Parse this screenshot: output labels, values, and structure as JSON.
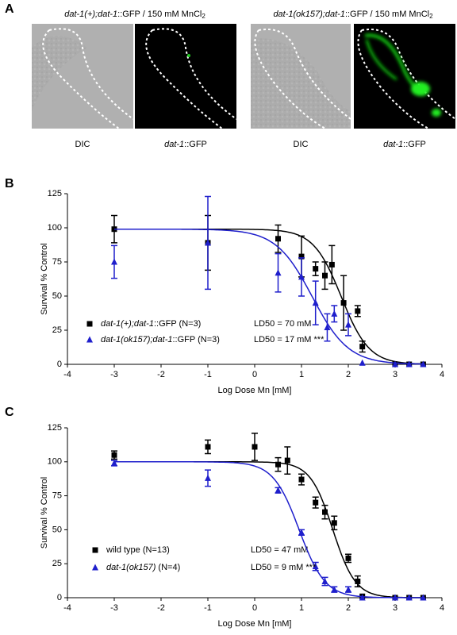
{
  "panel_a": {
    "label": "A",
    "groups": [
      {
        "heading": "dat-1(+);dat-1::GFP / 150 mM MnCl2",
        "captions": [
          "DIC",
          "dat-1::GFP"
        ]
      },
      {
        "heading": "dat-1(ok157);dat-1::GFP / 150 mM MnCl2",
        "captions": [
          "DIC",
          "dat-1::GFP"
        ]
      }
    ]
  },
  "chart_data": [
    {
      "type": "scatter",
      "panel": "B",
      "xlabel": "Log Dose Mn [mM]",
      "ylabel": "Survival % Control",
      "xlim": [
        -4,
        4
      ],
      "ylim": [
        0,
        125
      ],
      "xticks": [
        -4,
        -3,
        -2,
        -1,
        0,
        1,
        2,
        3,
        4
      ],
      "yticks": [
        0,
        25,
        50,
        75,
        100,
        125
      ],
      "series": [
        {
          "name": "dat-1(+);dat-1::GFP (N=3)",
          "ld50_label": "LD50 = 70 mM",
          "color": "#000000",
          "marker": "square",
          "x": [
            -3,
            -1,
            0.5,
            1,
            1.3,
            1.5,
            1.65,
            1.9,
            2.2,
            2.3,
            3,
            3.3,
            3.6
          ],
          "values": [
            99,
            89,
            92,
            79,
            70,
            65,
            73,
            45,
            39,
            13,
            0,
            0,
            0
          ],
          "errors": [
            10,
            20,
            10,
            15,
            5,
            10,
            14,
            20,
            4,
            4,
            null,
            null,
            null
          ],
          "fit": {
            "top": 99,
            "bottom": 0,
            "log_ld50": 1.85,
            "hill": 1.46
          }
        },
        {
          "name": "dat-1(ok157);dat-1::GFP (N=3)",
          "ld50_label": "LD50 = 17 mM ***",
          "color": "#1f1fcc",
          "marker": "triangle",
          "x": [
            -3,
            -1,
            0.5,
            1,
            1.3,
            1.55,
            1.7,
            2,
            2.3,
            3,
            3.3,
            3.6
          ],
          "values": [
            75,
            89,
            67,
            64,
            45,
            27,
            37,
            29,
            1,
            0,
            0,
            0
          ],
          "errors": [
            12,
            34,
            14,
            14,
            16,
            10,
            6,
            8,
            null,
            null,
            null,
            null
          ],
          "fit": {
            "top": 99,
            "bottom": 0,
            "log_ld50": 1.23,
            "hill": 1.12
          }
        }
      ]
    },
    {
      "type": "scatter",
      "panel": "C",
      "xlabel": "Log Dose Mn [mM]",
      "ylabel": "Survival % Control",
      "xlim": [
        -4,
        4
      ],
      "ylim": [
        0,
        125
      ],
      "xticks": [
        -4,
        -3,
        -2,
        -1,
        0,
        1,
        2,
        3,
        4
      ],
      "yticks": [
        0,
        25,
        50,
        75,
        100,
        125
      ],
      "series": [
        {
          "name": "wild type (N=13)",
          "ld50_label": "LD50 = 47 mM",
          "color": "#000000",
          "marker": "square",
          "x": [
            -3,
            -1,
            0,
            0.5,
            0.7,
            1,
            1.3,
            1.5,
            1.7,
            2,
            2.2,
            2.3,
            3,
            3.3,
            3.6
          ],
          "values": [
            105,
            111,
            111,
            98,
            101,
            87,
            70,
            63,
            55,
            29,
            12,
            1,
            0,
            0,
            0
          ],
          "errors": [
            3,
            5,
            10,
            5,
            10,
            4,
            4,
            5,
            5,
            3,
            4,
            null,
            null,
            null,
            null
          ],
          "fit": {
            "top": 100,
            "bottom": 0,
            "log_ld50": 1.67,
            "hill": 1.8
          }
        },
        {
          "name": "dat-1(ok157) (N=4)",
          "ld50_label": "LD50 = 9 mM ***",
          "color": "#1f1fcc",
          "marker": "triangle",
          "x": [
            -3,
            -1,
            0.5,
            1,
            1.3,
            1.5,
            1.7,
            2,
            2.3,
            3,
            3.3,
            3.6
          ],
          "values": [
            99,
            88,
            79,
            48,
            23,
            12,
            6,
            6,
            0,
            0,
            0,
            0
          ],
          "errors": [
            2,
            6,
            2,
            2,
            3,
            3,
            2,
            2,
            null,
            null,
            null,
            null
          ],
          "fit": {
            "top": 100,
            "bottom": 0,
            "log_ld50": 0.95,
            "hill": 1.57
          }
        }
      ]
    }
  ]
}
